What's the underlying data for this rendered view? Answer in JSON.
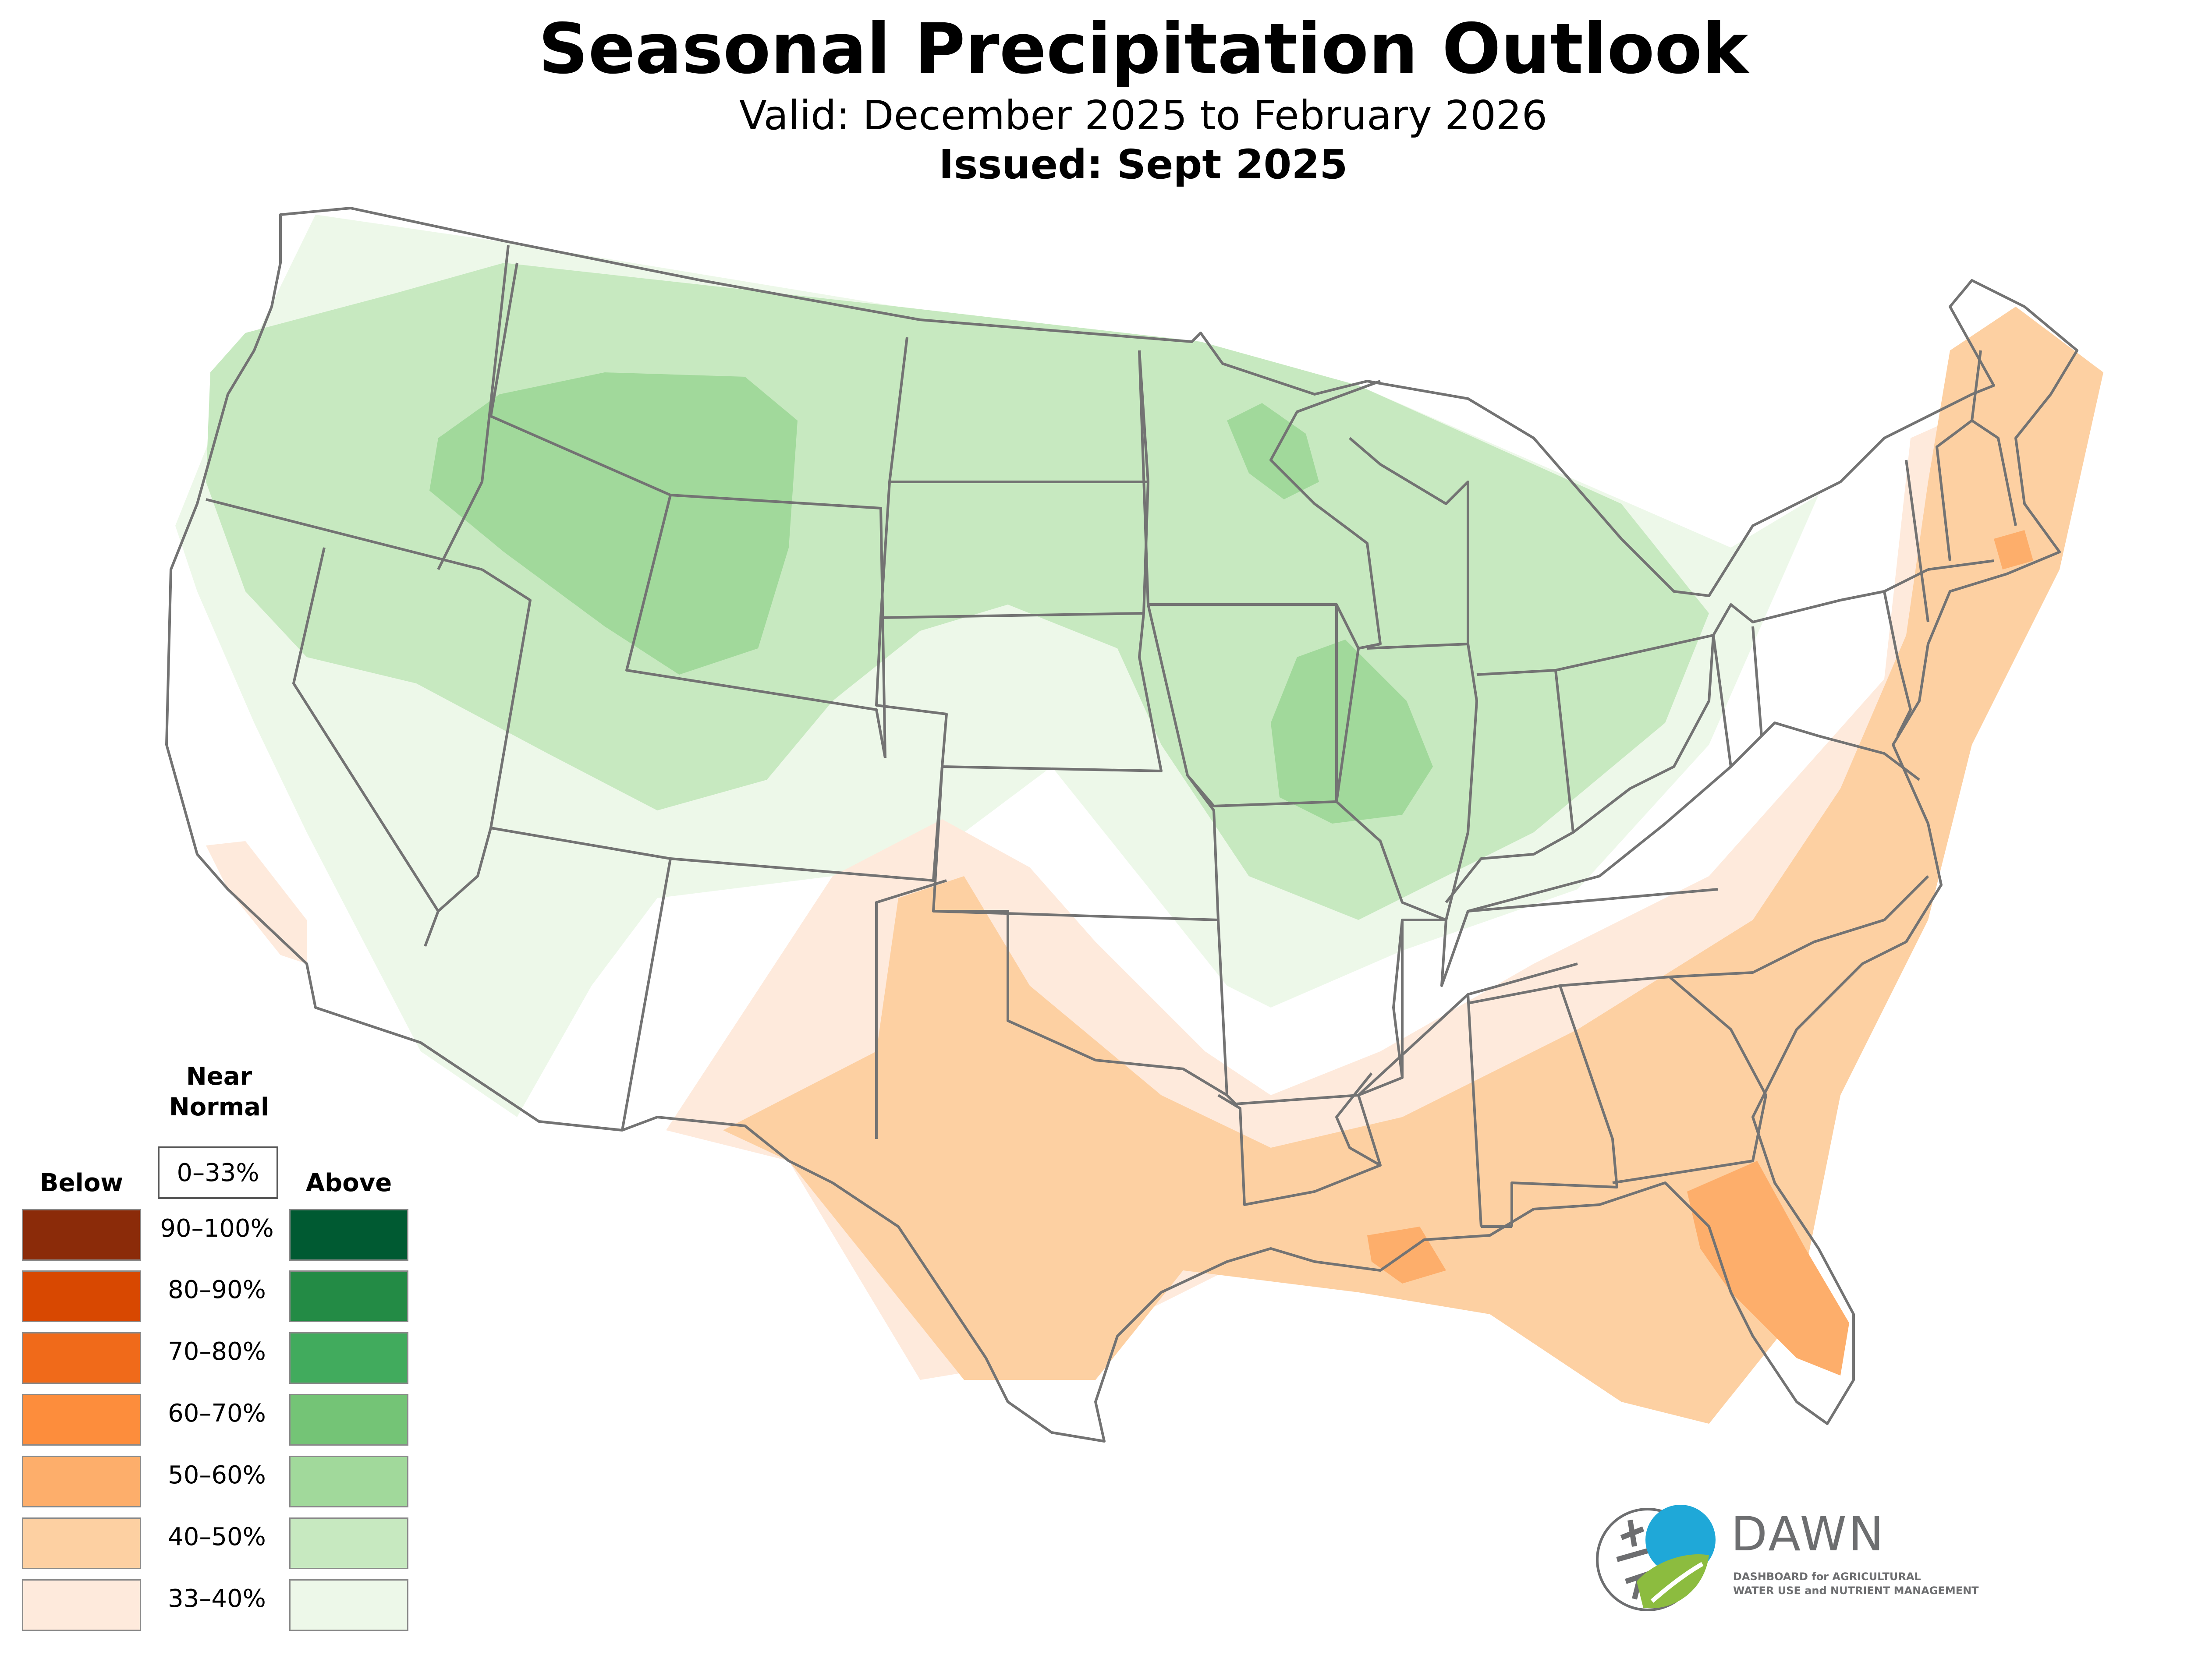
{
  "header": {
    "title": "Seasonal Precipitation Outlook",
    "valid": "Valid: December 2025 to February 2026",
    "issued": "Issued: Sept 2025"
  },
  "legend": {
    "below_label": "Below",
    "above_label": "Above",
    "near_normal_line1": "Near",
    "near_normal_line2": "Normal",
    "near_normal_range": "0–33%",
    "rows": [
      {
        "range": "90–100%",
        "below_color": "#8b2b09",
        "above_color": "#005a32"
      },
      {
        "range": "80–90%",
        "below_color": "#d84801",
        "above_color": "#238b45"
      },
      {
        "range": "70–80%",
        "below_color": "#f06a1a",
        "above_color": "#41ab5d"
      },
      {
        "range": "60–70%",
        "below_color": "#fd8d3c",
        "above_color": "#74c476"
      },
      {
        "range": "50–60%",
        "below_color": "#fdae6b",
        "above_color": "#a1d99b"
      },
      {
        "range": "40–50%",
        "below_color": "#fdd0a2",
        "above_color": "#c7e9c0"
      },
      {
        "range": "33–40%",
        "below_color": "#feeadc",
        "above_color": "#edf8e9"
      }
    ]
  },
  "logo": {
    "name": "DAWN",
    "subtitle_line1": "DASHBOARD for AGRICULTURAL",
    "subtitle_line2": "WATER USE and NUTRIENT MANAGEMENT"
  }
}
